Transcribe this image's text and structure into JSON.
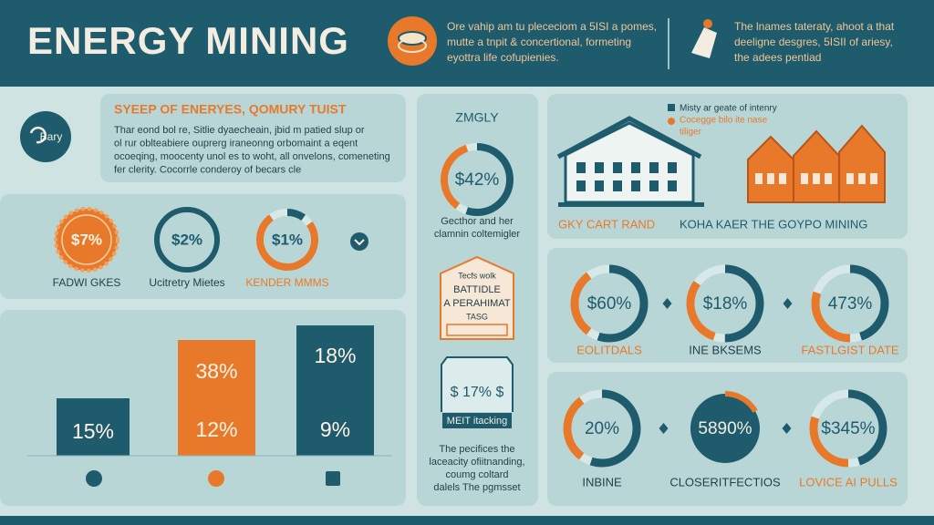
{
  "header": {
    "title": "ENERGY MINING",
    "note_left": [
      "Ore vahip am tu plececiom a 5ISI a pomes,",
      "mutte a tnpit & concertional, formeting",
      "eyottra life cofupienies."
    ],
    "note_right": [
      "The lnames tateraty, ahoot a that",
      "deeligne desgres, 5ISII of ariesy,",
      "the adees pentiad"
    ]
  },
  "intro": {
    "badge": "Bary",
    "heading": "SYEEP OF ENERYES, QOMURY TUIST",
    "lines": [
      "Thar eond bol re, Sitlie dyaecheain, jbid m patied slup or",
      "ol rur oblteabiere ouprerg iraneonng orbomaint a eqent",
      "ocoeqing, moocenty unol es to woht, all onvelons, comeneting",
      "fer clerity. Cocorrle conderoy of becars cle"
    ]
  },
  "badges": [
    {
      "value": "$7%",
      "label": "FADWI GKES"
    },
    {
      "value": "$2%",
      "label": "Ucitretry Mietes"
    },
    {
      "value": "$1%",
      "label": "KENDER MMMS"
    }
  ],
  "bars": [
    {
      "labels": [
        "15%"
      ]
    },
    {
      "labels": [
        "38%",
        "12%"
      ]
    },
    {
      "labels": [
        "18%",
        "9%"
      ]
    }
  ],
  "middle": {
    "heading": "ZMGLY",
    "ring": "$42%",
    "caption": [
      "Gecthor and her",
      "clamnin coltemigler"
    ],
    "sign": [
      "Tecfs wolk",
      "BATTIDLE",
      "A PERAHIMAT",
      "TASG"
    ],
    "box": "$ 17% $",
    "box_label": "MEIT itacking",
    "footer": [
      "The pecifices the",
      "laceacity ofiitnanding,",
      "coumg coltard",
      "dalels The pgmsset"
    ]
  },
  "towns": {
    "legend": [
      "Misty ar geate of intenry",
      "Cocegge bilo ite nase",
      "tiliger"
    ],
    "captions": [
      "GKY CART RAND",
      "KOHA KAER THE GOYPO MINING"
    ]
  },
  "rings_top": [
    {
      "value": "$60%",
      "label": "EOLITDALS"
    },
    {
      "value": "$18%",
      "label": "INE BKSEMS"
    },
    {
      "value": "473%",
      "label": "FASTLGIST DATE"
    }
  ],
  "rings_bottom": [
    {
      "value": "20%",
      "label": "INBINE"
    },
    {
      "value": "5890%",
      "label": "CLOSERITFECTIOS"
    },
    {
      "value": "$345%",
      "label": "LOVICE AI PULLS"
    }
  ]
}
